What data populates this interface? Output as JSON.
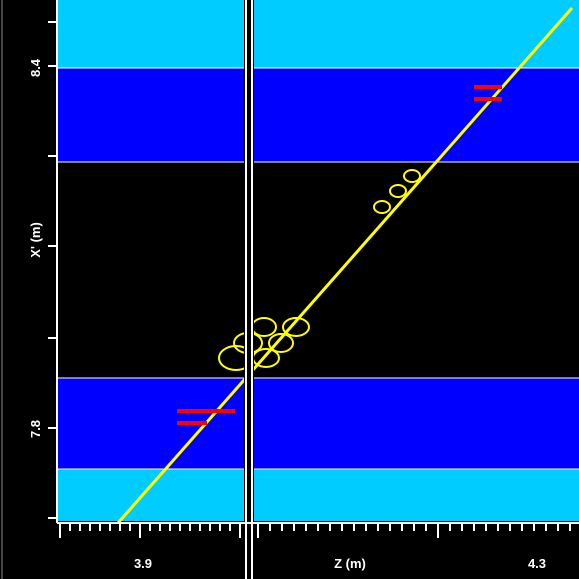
{
  "colors": {
    "background": "#000000",
    "outer_band": "#00ccff",
    "inner_band": "#0000ff",
    "core_band": "#000000",
    "divider": "#ffffff",
    "trajectory": "#ffff00",
    "marker": "#ff0000",
    "tick": "#ffffff"
  },
  "y_axis": {
    "label": "X' (m)",
    "tick_labels": [
      {
        "value": 8.4,
        "text": "8.4"
      },
      {
        "value": 7.8,
        "text": "7.8"
      }
    ]
  },
  "x_axis": {
    "label": "Z (m)",
    "tick_labels": [
      {
        "value": 3.9,
        "text": "3.9"
      },
      {
        "value": 4.3,
        "text": "4.3"
      }
    ]
  },
  "icons": {
    "markers": "red-bar-marker-icon",
    "bubbles": "yellow-ellipse-icon"
  }
}
